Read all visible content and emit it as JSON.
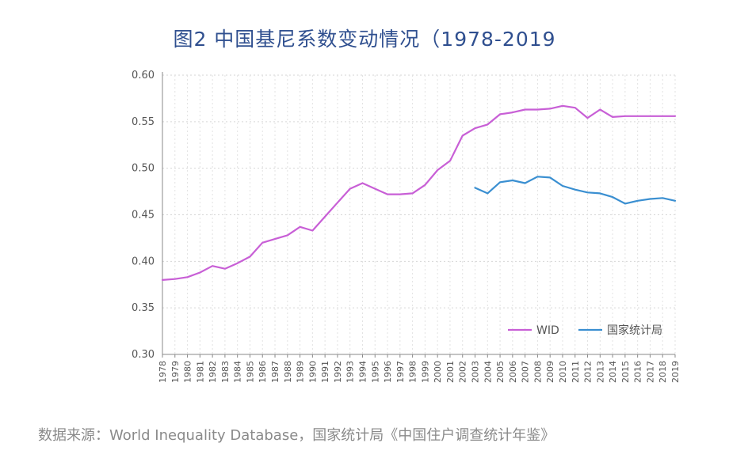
{
  "title": "图2  中国基尼系数变动情况（1978-2019",
  "source": "数据来源：World Inequality Database，国家统计局《中国住户调查统计年鉴》",
  "chart_data": {
    "type": "line",
    "ylim": [
      0.3,
      0.6
    ],
    "yticks": [
      "0.30",
      "0.35",
      "0.40",
      "0.45",
      "0.50",
      "0.55",
      "0.60"
    ],
    "grid": true,
    "legend_position": "bottom-right",
    "x": [
      1978,
      1979,
      1980,
      1981,
      1982,
      1983,
      1984,
      1985,
      1986,
      1987,
      1988,
      1989,
      1990,
      1991,
      1992,
      1993,
      1994,
      1995,
      1996,
      1997,
      1998,
      1999,
      2000,
      2001,
      2002,
      2003,
      2004,
      2005,
      2006,
      2007,
      2008,
      2009,
      2010,
      2011,
      2012,
      2013,
      2014,
      2015,
      2016,
      2017,
      2018,
      2019
    ],
    "series": [
      {
        "name": "WID",
        "color": "#c85fd6",
        "values": [
          0.38,
          0.381,
          0.383,
          0.388,
          0.395,
          0.392,
          0.398,
          0.405,
          0.42,
          0.424,
          0.428,
          0.437,
          0.433,
          0.448,
          0.463,
          0.478,
          0.484,
          0.478,
          0.472,
          0.472,
          0.473,
          0.482,
          0.498,
          0.508,
          0.535,
          0.543,
          0.547,
          0.558,
          0.56,
          0.563,
          0.563,
          0.564,
          0.567,
          0.565,
          0.554,
          0.563,
          0.555,
          0.556,
          0.556,
          0.556,
          0.556,
          0.556
        ]
      },
      {
        "name": "国家统计局",
        "color": "#3a8fd1",
        "values": [
          null,
          null,
          null,
          null,
          null,
          null,
          null,
          null,
          null,
          null,
          null,
          null,
          null,
          null,
          null,
          null,
          null,
          null,
          null,
          null,
          null,
          null,
          null,
          null,
          null,
          0.479,
          0.473,
          0.485,
          0.487,
          0.484,
          0.491,
          0.49,
          0.481,
          0.477,
          0.474,
          0.473,
          0.469,
          0.462,
          0.465,
          0.467,
          0.468,
          0.465
        ]
      }
    ]
  }
}
